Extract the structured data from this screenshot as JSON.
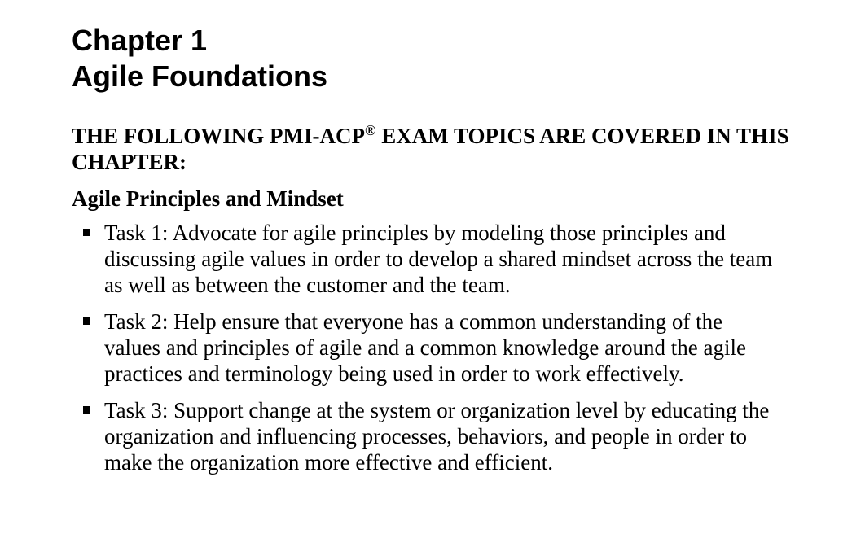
{
  "chapter": {
    "number": "Chapter 1",
    "title": "Agile Foundations"
  },
  "topics_heading": {
    "before_mark": "THE FOLLOWING PMI-ACP",
    "mark": "®",
    "after_mark": " EXAM TOPICS ARE COVERED IN THIS CHAPTER:"
  },
  "domain_heading": "Agile Principles and Mindset",
  "tasks": [
    {
      "text": "Task 1: Advocate for agile principles by modeling those principles and discussing agile values in order to develop a shared mindset across the team as well as between the customer and the team."
    },
    {
      "text": "Task 2: Help ensure that everyone has a common understanding of the values and principles of agile and a common knowledge around the agile practices and terminology being used in order to work effectively."
    },
    {
      "text": "Task 3: Support change at the system or organization level by educating the organization and influencing processes, behaviors, and people in order to make the organization more effective and efficient."
    }
  ]
}
